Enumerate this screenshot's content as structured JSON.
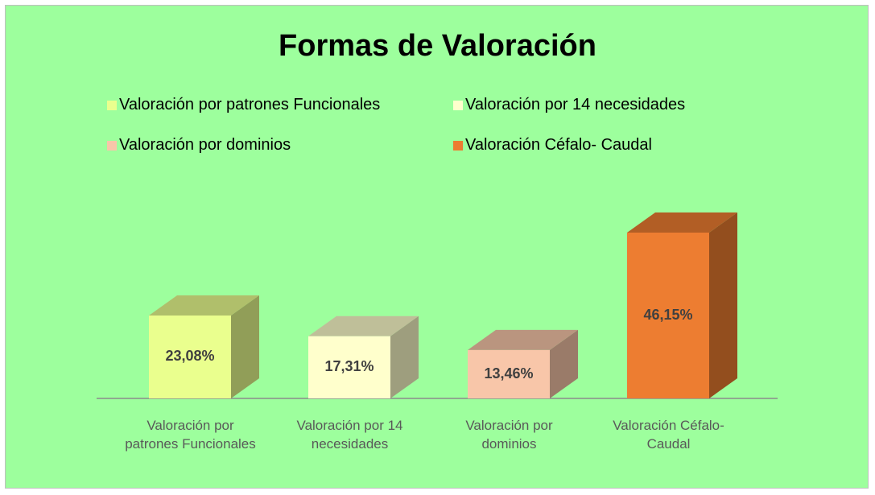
{
  "chart_data": {
    "type": "bar3d",
    "title": "Formas de Valoración",
    "categories": [
      "Valoración por patrones Funcionales",
      "Valoración por 14 necesidades",
      "Valoración por dominios",
      "Valoración Céfalo- Caudal"
    ],
    "values": [
      23.08,
      17.31,
      13.46,
      46.15
    ],
    "value_labels": [
      "23,08%",
      "17,31%",
      "13,46%",
      "46,15%"
    ],
    "colors": [
      "#eaff8e",
      "#ffffcc",
      "#f8c6a9",
      "#ed7d31"
    ],
    "legend": "top"
  }
}
